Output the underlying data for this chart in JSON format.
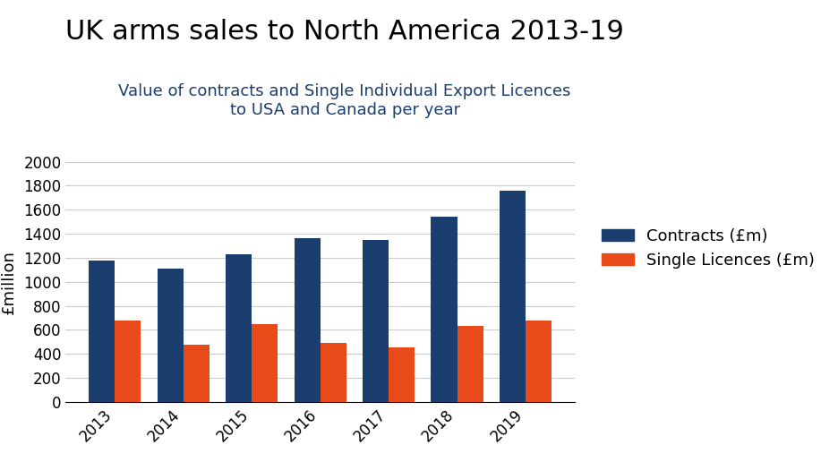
{
  "title": "UK arms sales to North America 2013-19",
  "subtitle": "Value of contracts and Single Individual Export Licences\nto USA and Canada per year",
  "years": [
    2013,
    2014,
    2015,
    2016,
    2017,
    2018,
    2019
  ],
  "contracts": [
    1180,
    1110,
    1230,
    1360,
    1350,
    1540,
    1760
  ],
  "licences": [
    680,
    475,
    650,
    495,
    455,
    635,
    680
  ],
  "bar_color_contracts": "#1a3e6e",
  "bar_color_licences": "#e84a1a",
  "ylabel": "£million",
  "ylim": [
    0,
    2000
  ],
  "yticks": [
    0,
    200,
    400,
    600,
    800,
    1000,
    1200,
    1400,
    1600,
    1800,
    2000
  ],
  "legend_labels": [
    "Contracts (£m)",
    "Single Licences (£m)"
  ],
  "title_fontsize": 22,
  "subtitle_fontsize": 13,
  "tick_fontsize": 12,
  "ylabel_fontsize": 13,
  "legend_fontsize": 13,
  "background_color": "#ffffff",
  "bar_width": 0.38,
  "grid_color": "#cccccc",
  "subtitle_color": "#1a3e6e",
  "title_color": "#000000"
}
